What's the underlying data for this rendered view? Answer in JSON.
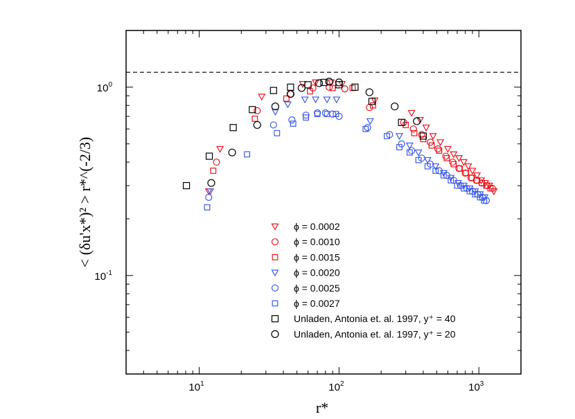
{
  "chart_data": {
    "type": "scatter",
    "title": "",
    "xlabel": "r*",
    "ylabel": "< (δu'x*)² > r*^(-2/3)",
    "xscale": "log",
    "yscale": "log",
    "xlim": [
      3,
      2000
    ],
    "ylim": [
      0.03,
      2
    ],
    "x_ticks": [
      {
        "base": "10",
        "exp": "1",
        "value": 10
      },
      {
        "base": "10",
        "exp": "2",
        "value": 100
      },
      {
        "base": "10",
        "exp": "3",
        "value": 1000
      }
    ],
    "y_ticks": [
      {
        "base": "10",
        "exp": "0",
        "value": 1
      },
      {
        "base": "10",
        "exp": "-1",
        "value": 0.1
      }
    ],
    "reference_line": {
      "y": 1.2,
      "style": "dashed"
    },
    "legend_position": "bottom-right",
    "series": [
      {
        "name": "ϕ = 0.0002",
        "marker": "triangle-down",
        "color": "#e8141e",
        "points": [
          [
            11.7,
            0.28
          ],
          [
            14.1,
            0.47
          ],
          [
            28,
            0.89
          ],
          [
            55,
            1.04
          ],
          [
            68,
            1.06
          ],
          [
            88,
            1.06
          ],
          [
            105,
            1.04
          ],
          [
            180,
            0.85
          ],
          [
            330,
            0.73
          ],
          [
            380,
            0.67
          ],
          [
            420,
            0.61
          ],
          [
            470,
            0.55
          ],
          [
            530,
            0.51
          ],
          [
            600,
            0.47
          ],
          [
            660,
            0.44
          ],
          [
            720,
            0.42
          ],
          [
            780,
            0.4
          ],
          [
            840,
            0.38
          ],
          [
            900,
            0.36
          ],
          [
            970,
            0.34
          ],
          [
            1040,
            0.32
          ],
          [
            1110,
            0.31
          ],
          [
            1190,
            0.3
          ],
          [
            1280,
            0.28
          ]
        ]
      },
      {
        "name": "ϕ = 0.0010",
        "marker": "circle",
        "color": "#e8141e",
        "points": [
          [
            13.3,
            0.4
          ],
          [
            26,
            0.75
          ],
          [
            45,
            0.92
          ],
          [
            65,
            0.99
          ],
          [
            85,
            1.0
          ],
          [
            110,
            0.98
          ],
          [
            165,
            0.78
          ],
          [
            290,
            0.65
          ],
          [
            340,
            0.6
          ],
          [
            390,
            0.56
          ],
          [
            450,
            0.51
          ],
          [
            510,
            0.47
          ],
          [
            580,
            0.43
          ],
          [
            650,
            0.4
          ],
          [
            720,
            0.37
          ],
          [
            800,
            0.35
          ],
          [
            880,
            0.33
          ],
          [
            960,
            0.32
          ],
          [
            1050,
            0.31
          ],
          [
            1150,
            0.3
          ],
          [
            1250,
            0.29
          ]
        ]
      },
      {
        "name": "ϕ = 0.0015",
        "marker": "square",
        "color": "#e8141e",
        "points": [
          [
            12.6,
            0.36
          ],
          [
            25,
            0.68
          ],
          [
            42,
            0.87
          ],
          [
            62,
            0.95
          ],
          [
            90,
            0.99
          ],
          [
            125,
            0.99
          ],
          [
            175,
            0.8
          ],
          [
            300,
            0.63
          ],
          [
            345,
            0.57
          ],
          [
            400,
            0.53
          ],
          [
            460,
            0.49
          ],
          [
            520,
            0.46
          ],
          [
            590,
            0.42
          ],
          [
            660,
            0.39
          ],
          [
            730,
            0.37
          ],
          [
            810,
            0.35
          ],
          [
            890,
            0.33
          ],
          [
            970,
            0.32
          ],
          [
            1050,
            0.31
          ],
          [
            1130,
            0.3
          ],
          [
            1210,
            0.29
          ]
        ]
      },
      {
        "name": "ϕ = 0.0020",
        "marker": "triangle-down",
        "color": "#3c5aeb",
        "points": [
          [
            12.0,
            0.28
          ],
          [
            35,
            0.74
          ],
          [
            43,
            0.81
          ],
          [
            57,
            0.86
          ],
          [
            68,
            0.86
          ],
          [
            82,
            0.86
          ],
          [
            96,
            0.86
          ],
          [
            167,
            0.66
          ],
          [
            270,
            0.55
          ],
          [
            320,
            0.49
          ],
          [
            370,
            0.45
          ],
          [
            430,
            0.41
          ],
          [
            490,
            0.38
          ],
          [
            560,
            0.35
          ],
          [
            630,
            0.33
          ],
          [
            710,
            0.31
          ],
          [
            780,
            0.3
          ],
          [
            860,
            0.29
          ],
          [
            940,
            0.28
          ],
          [
            1020,
            0.27
          ],
          [
            1100,
            0.26
          ]
        ]
      },
      {
        "name": "ϕ = 0.0025",
        "marker": "circle",
        "color": "#3c5aeb",
        "points": [
          [
            11.7,
            0.26
          ],
          [
            34,
            0.63
          ],
          [
            46,
            0.67
          ],
          [
            58,
            0.71
          ],
          [
            70,
            0.73
          ],
          [
            80,
            0.73
          ],
          [
            90,
            0.72
          ],
          [
            100,
            0.7
          ],
          [
            160,
            0.61
          ],
          [
            230,
            0.56
          ],
          [
            280,
            0.5
          ],
          [
            330,
            0.46
          ],
          [
            390,
            0.42
          ],
          [
            450,
            0.39
          ],
          [
            520,
            0.36
          ],
          [
            590,
            0.34
          ],
          [
            660,
            0.32
          ],
          [
            740,
            0.3
          ],
          [
            820,
            0.29
          ],
          [
            900,
            0.28
          ],
          [
            980,
            0.27
          ],
          [
            1060,
            0.26
          ],
          [
            1130,
            0.25
          ]
        ]
      },
      {
        "name": "ϕ = 0.0027",
        "marker": "square",
        "color": "#3c5aeb",
        "points": [
          [
            11.4,
            0.23
          ],
          [
            22,
            0.44
          ],
          [
            36,
            0.57
          ],
          [
            47,
            0.64
          ],
          [
            58,
            0.69
          ],
          [
            70,
            0.72
          ],
          [
            82,
            0.72
          ],
          [
            95,
            0.72
          ],
          [
            155,
            0.6
          ],
          [
            220,
            0.55
          ],
          [
            270,
            0.48
          ],
          [
            320,
            0.45
          ],
          [
            370,
            0.41
          ],
          [
            430,
            0.38
          ],
          [
            490,
            0.36
          ],
          [
            560,
            0.34
          ],
          [
            630,
            0.32
          ],
          [
            700,
            0.3
          ],
          [
            780,
            0.29
          ],
          [
            860,
            0.28
          ],
          [
            940,
            0.27
          ],
          [
            1020,
            0.26
          ],
          [
            1090,
            0.25
          ]
        ]
      },
      {
        "name": "Unladen, Antonia et. al. 1997, y⁺ = 40",
        "marker": "square-open",
        "color": "#000000",
        "points": [
          [
            8.1,
            0.3
          ],
          [
            11.8,
            0.43
          ],
          [
            17.5,
            0.61
          ],
          [
            24,
            0.76
          ],
          [
            34,
            0.96
          ],
          [
            45,
            1.0
          ],
          [
            60,
            1.03
          ],
          [
            78,
            1.06
          ],
          [
            100,
            1.03
          ],
          [
            130,
            1.0
          ],
          [
            172,
            0.84
          ],
          [
            280,
            0.65
          ],
          [
            400,
            0.55
          ]
        ]
      },
      {
        "name": "Unladen, Antonia et. al. 1997, y⁺ = 20",
        "marker": "circle-open",
        "color": "#000000",
        "points": [
          [
            12.2,
            0.31
          ],
          [
            17.2,
            0.45
          ],
          [
            26,
            0.63
          ],
          [
            35,
            0.79
          ],
          [
            45,
            0.92
          ],
          [
            54,
            0.99
          ],
          [
            72,
            1.05
          ],
          [
            85,
            1.07
          ],
          [
            100,
            1.06
          ],
          [
            165,
            0.94
          ],
          [
            250,
            0.79
          ],
          [
            360,
            0.66
          ]
        ]
      }
    ]
  }
}
